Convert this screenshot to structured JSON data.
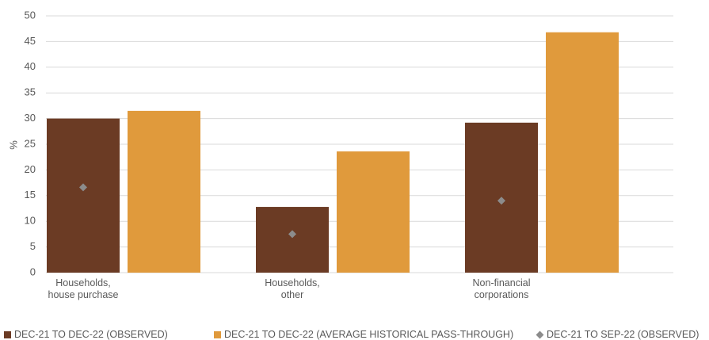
{
  "chart_data": {
    "type": "bar",
    "y_label": "%",
    "categories": [
      "Households, house purchase",
      "Households, other",
      "Non-financial corporations"
    ],
    "series": [
      {
        "name": "DEC-21 TO DEC-22 (OBSERVED)",
        "color": "#6b3b24",
        "values": [
          30,
          12.8,
          29.2
        ]
      },
      {
        "name": "DEC-21 TO DEC-22 (AVERAGE HISTORICAL PASS-THROUGH)",
        "color": "#e09a3c",
        "values": [
          31.5,
          23.6,
          46.8
        ]
      },
      {
        "name": "DEC-21 TO SEP-22 (OBSERVED)",
        "color": "#8c8c8c",
        "values": [
          16.6,
          7.5,
          14
        ],
        "marker": "diamond"
      }
    ],
    "ylim": [
      0,
      50
    ],
    "yticks": [
      0,
      5,
      10,
      15,
      20,
      25,
      30,
      35,
      40,
      45,
      50
    ],
    "grid": true
  }
}
